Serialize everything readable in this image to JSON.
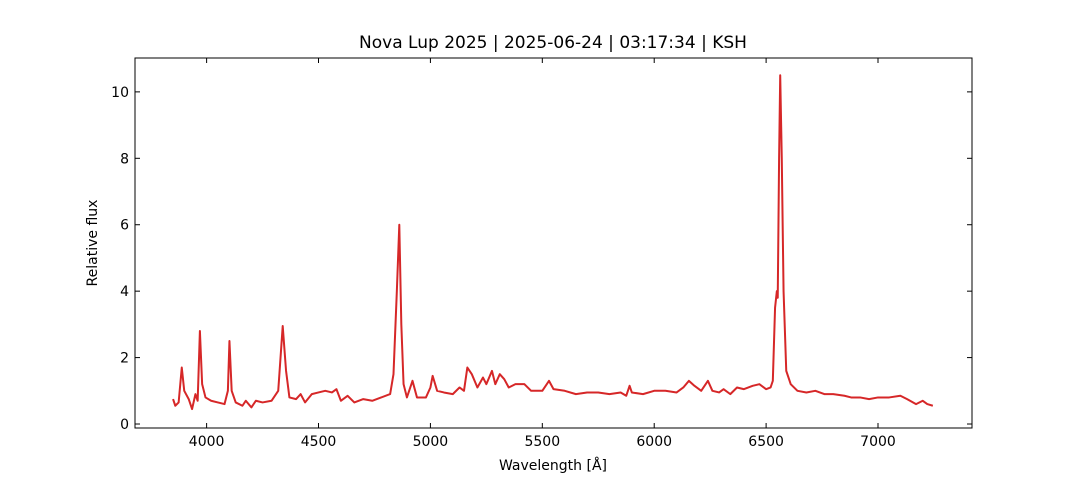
{
  "chart_data": {
    "type": "line",
    "title": "Nova Lup 2025 | 2025-06-24 | 03:17:34 | KSH",
    "x_label": "Wavelength [Å]",
    "y_label": "Relative flux",
    "x": [
      3850,
      3860,
      3875,
      3889,
      3900,
      3920,
      3935,
      3950,
      3960,
      3970,
      3980,
      3995,
      4020,
      4050,
      4080,
      4095,
      4102,
      4112,
      4130,
      4160,
      4175,
      4200,
      4220,
      4250,
      4290,
      4320,
      4340,
      4355,
      4370,
      4400,
      4420,
      4440,
      4470,
      4500,
      4530,
      4560,
      4580,
      4600,
      4630,
      4660,
      4700,
      4740,
      4780,
      4820,
      4835,
      4850,
      4861,
      4870,
      4880,
      4895,
      4920,
      4940,
      4980,
      5000,
      5010,
      5030,
      5060,
      5100,
      5130,
      5150,
      5165,
      5185,
      5210,
      5235,
      5250,
      5275,
      5290,
      5310,
      5330,
      5350,
      5380,
      5420,
      5450,
      5500,
      5530,
      5550,
      5600,
      5650,
      5700,
      5750,
      5800,
      5850,
      5875,
      5890,
      5900,
      5950,
      6000,
      6050,
      6100,
      6130,
      6155,
      6180,
      6210,
      6240,
      6260,
      6290,
      6310,
      6340,
      6370,
      6400,
      6440,
      6470,
      6500,
      6520,
      6530,
      6540,
      6548,
      6552,
      6558,
      6563,
      6570,
      6578,
      6590,
      6610,
      6640,
      6680,
      6720,
      6760,
      6800,
      6850,
      6880,
      6920,
      6960,
      7000,
      7050,
      7100,
      7130,
      7170,
      7200,
      7220,
      7245
    ],
    "series": [
      {
        "name": "Relative flux",
        "color": "#d62728",
        "values": [
          0.75,
          0.55,
          0.65,
          1.7,
          1.0,
          0.75,
          0.45,
          0.9,
          0.7,
          2.8,
          1.2,
          0.8,
          0.7,
          0.65,
          0.6,
          1.0,
          2.5,
          1.0,
          0.65,
          0.55,
          0.7,
          0.5,
          0.7,
          0.65,
          0.7,
          1.0,
          2.95,
          1.6,
          0.8,
          0.75,
          0.9,
          0.65,
          0.9,
          0.95,
          1.0,
          0.95,
          1.05,
          0.7,
          0.85,
          0.65,
          0.75,
          0.7,
          0.8,
          0.9,
          1.5,
          4.0,
          6.0,
          3.0,
          1.2,
          0.8,
          1.3,
          0.8,
          0.8,
          1.1,
          1.45,
          1.0,
          0.95,
          0.9,
          1.1,
          1.0,
          1.7,
          1.5,
          1.1,
          1.4,
          1.2,
          1.6,
          1.2,
          1.5,
          1.35,
          1.1,
          1.2,
          1.2,
          1.0,
          1.0,
          1.3,
          1.05,
          1.0,
          0.9,
          0.95,
          0.95,
          0.9,
          0.95,
          0.85,
          1.15,
          0.95,
          0.9,
          1.0,
          1.0,
          0.95,
          1.1,
          1.3,
          1.15,
          1.0,
          1.3,
          1.0,
          0.95,
          1.05,
          0.9,
          1.1,
          1.05,
          1.15,
          1.2,
          1.05,
          1.1,
          1.3,
          3.5,
          4.0,
          3.8,
          8.0,
          10.5,
          8.0,
          4.0,
          1.6,
          1.2,
          1.0,
          0.95,
          1.0,
          0.9,
          0.9,
          0.85,
          0.8,
          0.8,
          0.75,
          0.8,
          0.8,
          0.85,
          0.75,
          0.6,
          0.7,
          0.6,
          0.55
        ]
      }
    ],
    "xlim": [
      3680,
      7420
    ],
    "ylim": [
      -0.12,
      11.02
    ],
    "xticks": [
      4000,
      4500,
      5000,
      5500,
      6000,
      6500,
      7000
    ],
    "yticks": [
      0,
      2,
      4,
      6,
      8,
      10
    ]
  }
}
